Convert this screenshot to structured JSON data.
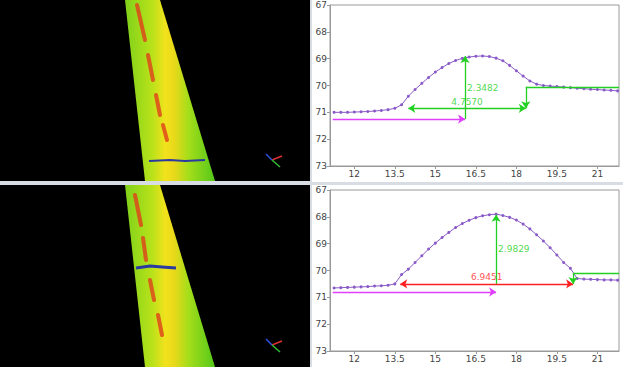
{
  "chart_data": [
    {
      "type": "line",
      "color": "#8a5ac8",
      "marker": "circle",
      "grid": false,
      "xlim": [
        11.1,
        21.8
      ],
      "xticks": [
        12,
        13.5,
        15,
        16.5,
        18,
        19.5,
        21
      ],
      "ylim": [
        73,
        67
      ],
      "yticks": [
        67,
        68,
        69,
        70,
        71,
        72,
        73
      ],
      "x": [
        11.25,
        11.5,
        11.75,
        12,
        12.25,
        12.5,
        12.75,
        13,
        13.25,
        13.5,
        13.75,
        14,
        14.25,
        14.5,
        14.75,
        15,
        15.25,
        15.5,
        15.75,
        16,
        16.25,
        16.5,
        16.75,
        17,
        17.25,
        17.5,
        17.75,
        18,
        18.25,
        18.5,
        18.75,
        19,
        19.25,
        19.5,
        19.75,
        20,
        20.25,
        20.5,
        20.75,
        21,
        21.25,
        21.5,
        21.75
      ],
      "values": [
        71.0,
        71.0,
        71.0,
        70.99,
        70.98,
        70.97,
        70.95,
        70.93,
        70.9,
        70.85,
        70.72,
        70.4,
        70.15,
        69.92,
        69.7,
        69.5,
        69.33,
        69.18,
        69.07,
        68.99,
        68.94,
        68.91,
        68.9,
        68.92,
        68.98,
        69.08,
        69.25,
        69.45,
        69.65,
        69.83,
        69.95,
        70.0,
        70.02,
        70.04,
        70.06,
        70.08,
        70.1,
        70.12,
        70.14,
        70.15,
        70.17,
        70.18,
        70.2
      ],
      "annotations": [
        {
          "label": "2.3482",
          "color": "#22d022",
          "from": [
            16.1,
            71.25
          ],
          "to": [
            16.1,
            68.9
          ],
          "marker": "end"
        },
        {
          "color": "#e040fb",
          "from": [
            11.2,
            71.25
          ],
          "to": [
            16.1,
            71.25
          ],
          "marker": "end"
        },
        {
          "label": "4.7570",
          "color": "#22d022",
          "from": [
            14.0,
            70.85
          ],
          "to": [
            18.35,
            70.85
          ],
          "marker": "both"
        },
        {
          "color": "#22d022",
          "from": [
            18.35,
            70.05
          ],
          "to": [
            18.35,
            70.85
          ],
          "marker": "end"
        },
        {
          "color": "#22d022",
          "from": [
            18.35,
            70.05
          ],
          "to": [
            21.8,
            70.05
          ],
          "marker": "none"
        }
      ]
    },
    {
      "type": "line",
      "color": "#8a5ac8",
      "marker": "circle",
      "grid": false,
      "xlim": [
        11.1,
        21.8
      ],
      "xticks": [
        12,
        13.5,
        15,
        16.5,
        18,
        19.5,
        21
      ],
      "ylim": [
        73,
        67
      ],
      "yticks": [
        67,
        68,
        69,
        70,
        71,
        72,
        73
      ],
      "x": [
        11.25,
        11.5,
        11.75,
        12,
        12.25,
        12.5,
        12.75,
        13,
        13.25,
        13.5,
        13.75,
        14,
        14.25,
        14.5,
        14.75,
        15,
        15.25,
        15.5,
        15.75,
        16,
        16.25,
        16.5,
        16.75,
        17,
        17.25,
        17.5,
        17.75,
        18,
        18.25,
        18.5,
        18.75,
        19,
        19.25,
        19.5,
        19.75,
        20,
        20.25,
        20.5,
        20.75,
        21,
        21.25,
        21.5,
        21.75
      ],
      "values": [
        70.65,
        70.64,
        70.63,
        70.62,
        70.61,
        70.6,
        70.58,
        70.57,
        70.55,
        70.5,
        70.15,
        69.95,
        69.7,
        69.45,
        69.2,
        68.98,
        68.77,
        68.58,
        68.4,
        68.25,
        68.13,
        68.03,
        67.96,
        67.92,
        67.9,
        67.95,
        68.02,
        68.12,
        68.27,
        68.45,
        68.67,
        68.9,
        69.15,
        69.42,
        69.7,
        69.92,
        70.3,
        70.32,
        70.33,
        70.34,
        70.35,
        70.35,
        70.36
      ],
      "annotations": [
        {
          "label": "2.9829",
          "color": "#22d022",
          "from": [
            17.25,
            70.5
          ],
          "to": [
            17.25,
            67.92
          ],
          "marker": "end"
        },
        {
          "color": "#e040fb",
          "from": [
            11.2,
            70.8
          ],
          "to": [
            17.25,
            70.8
          ],
          "marker": "end"
        },
        {
          "label": "6.9451",
          "color": "#ff2020",
          "from": [
            13.7,
            70.5
          ],
          "to": [
            20.1,
            70.5
          ],
          "marker": "both"
        },
        {
          "color": "#22d022",
          "from": [
            20.1,
            70.1
          ],
          "to": [
            20.1,
            70.5
          ],
          "marker": "end"
        },
        {
          "color": "#22d022",
          "from": [
            20.1,
            70.1
          ],
          "to": [
            21.8,
            70.1
          ],
          "marker": "none"
        }
      ]
    }
  ]
}
